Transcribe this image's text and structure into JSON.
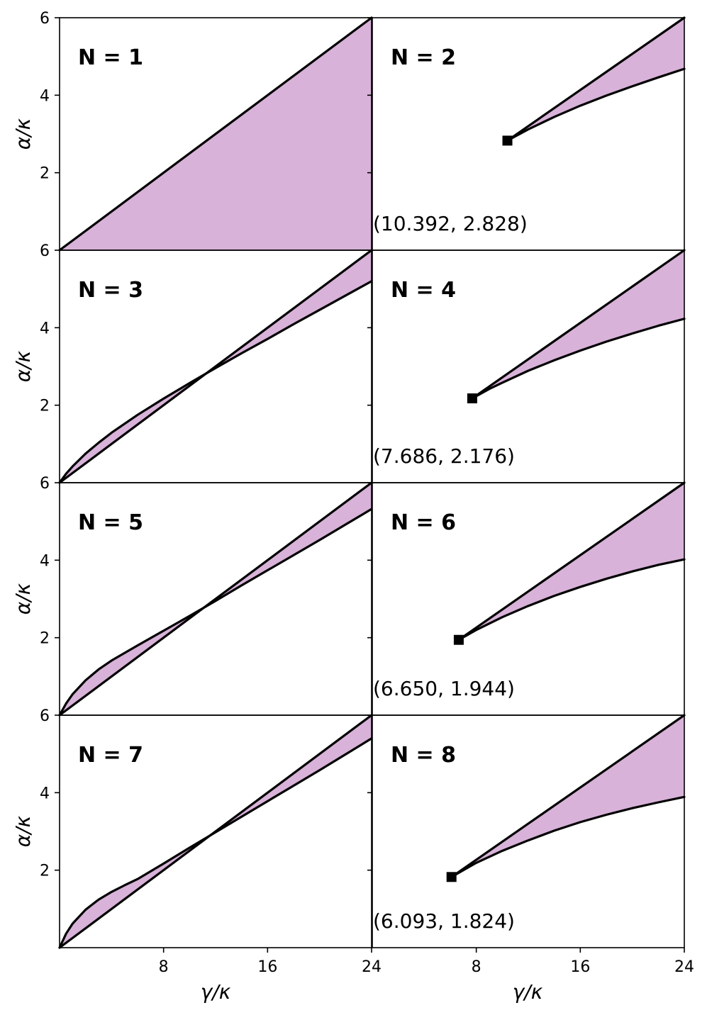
{
  "chart_data": {
    "type": "area",
    "xlabel": "γ/κ",
    "ylabel": "α/κ",
    "xlim": [
      0,
      24
    ],
    "ylim": [
      0,
      6
    ],
    "grid": false,
    "fill_color": "#d8b2d8",
    "line_color": "#000000",
    "x_ticks": [
      8,
      16,
      24
    ],
    "y_ticks": [
      2,
      4,
      6
    ],
    "panels": [
      {
        "label": "N = 1",
        "upper": {
          "x": [
            0,
            24
          ],
          "y": [
            0,
            6
          ]
        },
        "lower": {
          "x": [
            0,
            24
          ],
          "y": [
            0,
            0
          ]
        }
      },
      {
        "label": "N = 2",
        "endpoint": {
          "x": 10.392,
          "y": 2.828
        },
        "annotation": "(10.392, 2.828)",
        "upper": {
          "x": [
            10.392,
            24
          ],
          "y": [
            2.828,
            6
          ]
        },
        "lower": {
          "x": [
            10.392,
            12,
            14,
            16,
            18,
            20,
            22,
            24
          ],
          "y": [
            2.828,
            3.12,
            3.44,
            3.73,
            3.99,
            4.23,
            4.46,
            4.68
          ]
        }
      },
      {
        "label": "N = 3",
        "upper": {
          "x": [
            0,
            24
          ],
          "y": [
            0,
            6
          ]
        },
        "lower": {
          "x": [
            0,
            0.5,
            1,
            2,
            3,
            4,
            6,
            8,
            10,
            12,
            14,
            16,
            18,
            20,
            22,
            24
          ],
          "y": [
            0,
            0.23,
            0.42,
            0.75,
            1.03,
            1.29,
            1.75,
            2.17,
            2.57,
            2.96,
            3.34,
            3.71,
            4.09,
            4.46,
            4.83,
            5.2
          ]
        }
      },
      {
        "label": "N = 4",
        "endpoint": {
          "x": 7.686,
          "y": 2.176
        },
        "annotation": "(7.686, 2.176)",
        "upper": {
          "x": [
            7.686,
            24
          ],
          "y": [
            2.176,
            6
          ]
        },
        "lower": {
          "x": [
            7.686,
            9,
            10,
            12,
            14,
            16,
            18,
            20,
            22,
            24
          ],
          "y": [
            2.176,
            2.42,
            2.58,
            2.89,
            3.16,
            3.41,
            3.64,
            3.85,
            4.05,
            4.23
          ]
        }
      },
      {
        "label": "N = 5",
        "upper": {
          "x": [
            0,
            24
          ],
          "y": [
            0,
            6
          ]
        },
        "lower": {
          "x": [
            0,
            0.5,
            1,
            2,
            3,
            4,
            6,
            8,
            10,
            12,
            14,
            16,
            18,
            20,
            22,
            24
          ],
          "y": [
            0,
            0.3,
            0.54,
            0.9,
            1.18,
            1.41,
            1.8,
            2.18,
            2.56,
            2.95,
            3.35,
            3.74,
            4.13,
            4.52,
            4.92,
            5.32
          ]
        }
      },
      {
        "label": "N = 6",
        "endpoint": {
          "x": 6.65,
          "y": 1.944
        },
        "annotation": "(6.650, 1.944)",
        "upper": {
          "x": [
            6.65,
            24
          ],
          "y": [
            1.944,
            6
          ]
        },
        "lower": {
          "x": [
            6.65,
            8,
            10,
            12,
            14,
            16,
            18,
            20,
            22,
            24
          ],
          "y": [
            1.944,
            2.2,
            2.53,
            2.82,
            3.08,
            3.31,
            3.52,
            3.71,
            3.88,
            4.02
          ]
        }
      },
      {
        "label": "N = 7",
        "upper": {
          "x": [
            0,
            24
          ],
          "y": [
            0,
            6
          ]
        },
        "lower": {
          "x": [
            0,
            0.5,
            1,
            2,
            3,
            4,
            5,
            6,
            8,
            10,
            12,
            14,
            16,
            18,
            20,
            22,
            24
          ],
          "y": [
            0,
            0.36,
            0.62,
            0.98,
            1.24,
            1.44,
            1.61,
            1.77,
            2.17,
            2.58,
            2.98,
            3.38,
            3.78,
            4.18,
            4.58,
            4.99,
            5.4
          ]
        }
      },
      {
        "label": "N = 8",
        "endpoint": {
          "x": 6.093,
          "y": 1.824
        },
        "annotation": "(6.093, 1.824)",
        "upper": {
          "x": [
            6.093,
            24
          ],
          "y": [
            1.824,
            6
          ]
        },
        "lower": {
          "x": [
            6.093,
            8,
            10,
            12,
            14,
            16,
            18,
            20,
            22,
            24
          ],
          "y": [
            1.824,
            2.19,
            2.5,
            2.77,
            3.02,
            3.24,
            3.43,
            3.6,
            3.75,
            3.89
          ]
        }
      }
    ]
  }
}
